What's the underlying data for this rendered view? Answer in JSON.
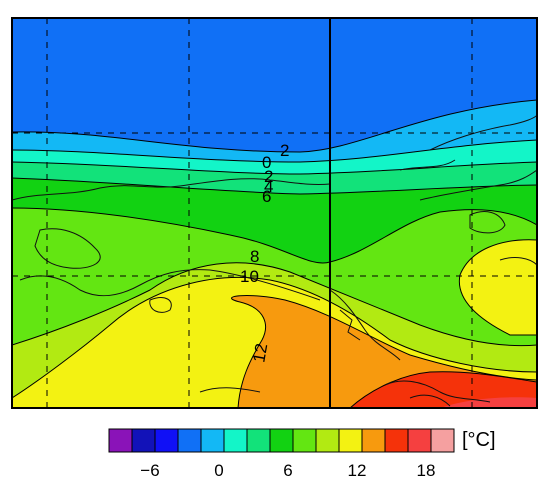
{
  "colorbar": {
    "colors": [
      "#8a13b8",
      "#1212b8",
      "#1010f6",
      "#1070f6",
      "#13b8f5",
      "#13f5c8",
      "#12e27a",
      "#12d212",
      "#63e612",
      "#b2ea12",
      "#f3f212",
      "#f79a0e",
      "#f5320a",
      "#f54040",
      "#f5a0a0"
    ],
    "tick_labels": [
      "−6",
      "0",
      "6",
      "12",
      "18"
    ],
    "unit": "[°C]"
  },
  "contour_labels": [
    "2",
    "0",
    "2",
    "4",
    "6",
    "8",
    "10",
    "12"
  ],
  "map": {
    "gridlines": "dashed",
    "vertical_line": "solid"
  }
}
